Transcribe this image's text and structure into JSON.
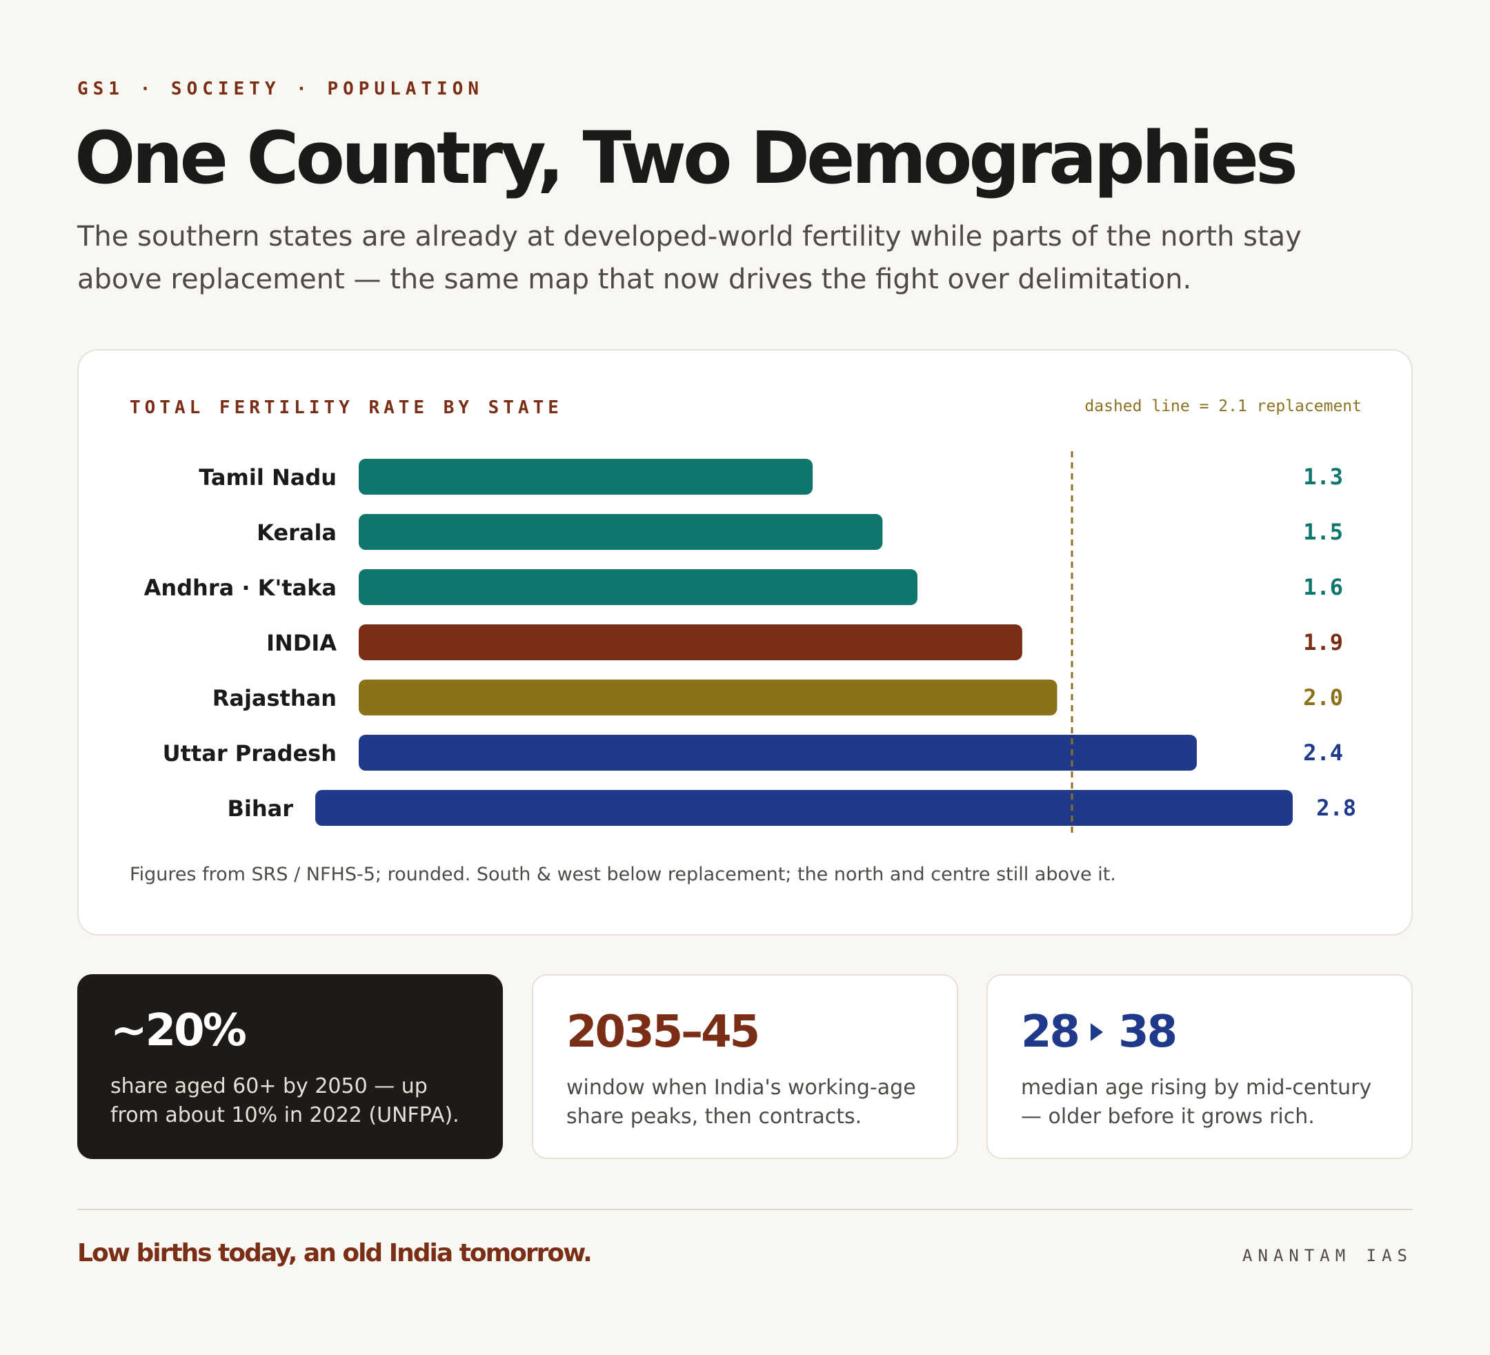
{
  "header": {
    "kicker": "GS1 · SOCIETY · POPULATION",
    "title": "One Country, Two Demographies",
    "subtitle": "The southern states are already at developed-world fertility while parts of the north stay above replacement — the same map that now drives the fight over delimitation."
  },
  "chart_data": {
    "type": "bar",
    "orientation": "horizontal",
    "title": "TOTAL FERTILITY RATE BY STATE",
    "reference_note": "dashed line = 2.1 replacement",
    "reference_line": 2.1,
    "categories": [
      "Tamil Nadu",
      "Kerala",
      "Andhra · K'taka",
      "INDIA",
      "Rajasthan",
      "Uttar Pradesh",
      "Bihar"
    ],
    "values": [
      1.3,
      1.5,
      1.6,
      1.9,
      2.0,
      2.4,
      2.8
    ],
    "value_labels": [
      "1.3",
      "1.5",
      "1.6",
      "1.9",
      "2.0",
      "2.4",
      "2.8"
    ],
    "bar_colors": [
      "#0f766e",
      "#0f766e",
      "#0f766e",
      "#7a2e16",
      "#8a7219",
      "#1f3a8a",
      "#1f3a8a"
    ],
    "reference_color": "#8a7220",
    "grid": false,
    "footnote": "Figures from SRS / NFHS-5; rounded. South & west below replacement; the north and centre still above it."
  },
  "stats": [
    {
      "value": "~20%",
      "desc": "share aged 60+ by 2050 — up from about 10% in 2022 (UNFPA)."
    },
    {
      "value": "2035–45",
      "desc": "window when India's working-age share peaks, then contracts."
    },
    {
      "value_from": "28",
      "value_to": "38",
      "icon": "chevron-right-icon",
      "desc": "median age rising by mid-century — older before it grows rich."
    }
  ],
  "footer": {
    "tagline": "Low births today, an old India tomorrow.",
    "brand": "ANANTAM IAS"
  },
  "colors": {
    "background": "#f9f7f2",
    "accent_maroon": "#7a2e16",
    "teal": "#0f766e",
    "olive": "#8a7219",
    "navy": "#1f3a8a",
    "dark_card": "#1e1a17"
  }
}
